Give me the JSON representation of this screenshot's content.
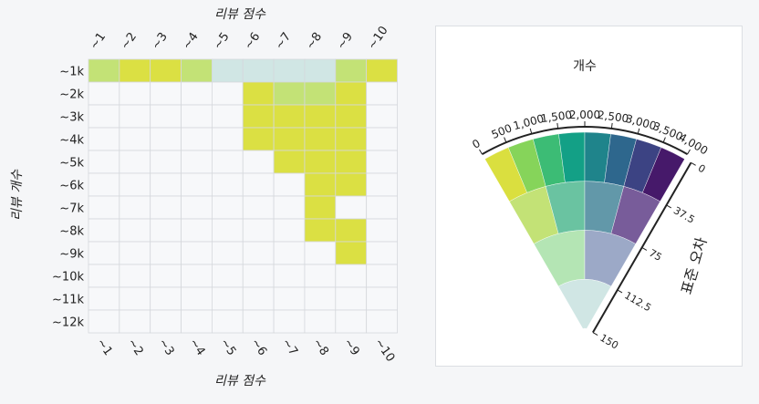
{
  "heatmap": {
    "title_top": "리뷰 점수",
    "xlabel": "리뷰 점수",
    "ylabel": "리뷰 개수"
  },
  "radial": {
    "angle_label": "개수",
    "radius_label": "표준 오차"
  },
  "colors": {
    "cell_empty": "#f7f8fa",
    "grid": "#d5d8dc"
  },
  "chart_data": [
    {
      "type": "heatmap",
      "title": "",
      "xlabel": "리뷰 점수",
      "ylabel": "리뷰 개수",
      "x_categories": [
        "~1",
        "~2",
        "~3",
        "~4",
        "~5",
        "~6",
        "~7",
        "~8",
        "~9",
        "~10"
      ],
      "y_categories": [
        "~1k",
        "~2k",
        "~3k",
        "~4k",
        "~5k",
        "~6k",
        "~7k",
        "~8k",
        "~9k",
        "~10k",
        "~11k",
        "~12k"
      ],
      "x_axis_positions": [
        "top",
        "bottom"
      ],
      "cells": [
        {
          "x": "~1",
          "y": "~1k",
          "color": "#c3e276"
        },
        {
          "x": "~2",
          "y": "~1k",
          "color": "#dbe043"
        },
        {
          "x": "~3",
          "y": "~1k",
          "color": "#dbe043"
        },
        {
          "x": "~4",
          "y": "~1k",
          "color": "#c3e276"
        },
        {
          "x": "~5",
          "y": "~1k",
          "color": "#d0e6e4"
        },
        {
          "x": "~6",
          "y": "~1k",
          "color": "#d0e6e4"
        },
        {
          "x": "~7",
          "y": "~1k",
          "color": "#d0e6e4"
        },
        {
          "x": "~8",
          "y": "~1k",
          "color": "#d0e6e4"
        },
        {
          "x": "~9",
          "y": "~1k",
          "color": "#c3e276"
        },
        {
          "x": "~10",
          "y": "~1k",
          "color": "#dbe043"
        },
        {
          "x": "~6",
          "y": "~2k",
          "color": "#dbe043"
        },
        {
          "x": "~7",
          "y": "~2k",
          "color": "#c3e276"
        },
        {
          "x": "~8",
          "y": "~2k",
          "color": "#c3e276"
        },
        {
          "x": "~9",
          "y": "~2k",
          "color": "#dbe043"
        },
        {
          "x": "~6",
          "y": "~3k",
          "color": "#dbe043"
        },
        {
          "x": "~7",
          "y": "~3k",
          "color": "#dbe043"
        },
        {
          "x": "~8",
          "y": "~3k",
          "color": "#dbe043"
        },
        {
          "x": "~9",
          "y": "~3k",
          "color": "#dbe043"
        },
        {
          "x": "~6",
          "y": "~4k",
          "color": "#dbe043"
        },
        {
          "x": "~7",
          "y": "~4k",
          "color": "#dbe043"
        },
        {
          "x": "~8",
          "y": "~4k",
          "color": "#dbe043"
        },
        {
          "x": "~9",
          "y": "~4k",
          "color": "#dbe043"
        },
        {
          "x": "~7",
          "y": "~5k",
          "color": "#dbe043"
        },
        {
          "x": "~8",
          "y": "~5k",
          "color": "#dbe043"
        },
        {
          "x": "~9",
          "y": "~5k",
          "color": "#dbe043"
        },
        {
          "x": "~8",
          "y": "~6k",
          "color": "#dbe043"
        },
        {
          "x": "~9",
          "y": "~6k",
          "color": "#dbe043"
        },
        {
          "x": "~8",
          "y": "~7k",
          "color": "#dbe043"
        },
        {
          "x": "~8",
          "y": "~8k",
          "color": "#dbe043"
        },
        {
          "x": "~9",
          "y": "~8k",
          "color": "#dbe043"
        },
        {
          "x": "~9",
          "y": "~9k",
          "color": "#dbe043"
        }
      ]
    },
    {
      "type": "radial_bar",
      "title": "",
      "angle_label": "개수",
      "radius_label": "표준 오차",
      "angle_axis": {
        "min": 0,
        "max": 4000,
        "ticks": [
          0,
          500,
          1000,
          1500,
          2000,
          2500,
          3000,
          3500,
          4000
        ],
        "tick_labels": [
          "0",
          "500",
          "1,000",
          "1,500",
          "2,000",
          "2,500",
          "3,000",
          "3,500",
          "4,000"
        ]
      },
      "radius_axis": {
        "min": 0,
        "max": 150,
        "ticks": [
          0,
          37.5,
          75,
          112.5,
          150
        ],
        "tick_labels": [
          "0",
          "37.5",
          "75",
          "112.5",
          "150"
        ]
      },
      "radial_bands": [
        {
          "band_index": 0,
          "segments": [
            {
              "from": 0,
              "to": 500,
              "color": "#dadf3f"
            },
            {
              "from": 500,
              "to": 1000,
              "color": "#86d45a"
            },
            {
              "from": 1000,
              "to": 1500,
              "color": "#3cbc75"
            },
            {
              "from": 1500,
              "to": 2000,
              "color": "#13a086"
            },
            {
              "from": 2000,
              "to": 2500,
              "color": "#1f848b"
            },
            {
              "from": 2500,
              "to": 3000,
              "color": "#2e678d"
            },
            {
              "from": 3000,
              "to": 3500,
              "color": "#3c4383"
            },
            {
              "from": 3500,
              "to": 4000,
              "color": "#46196a"
            }
          ]
        },
        {
          "band_index": 1,
          "segments": [
            {
              "from": 0,
              "to": 1000,
              "color": "#c3e276"
            },
            {
              "from": 1000,
              "to": 2000,
              "color": "#6ac3a1"
            },
            {
              "from": 2000,
              "to": 3000,
              "color": "#6298a9"
            },
            {
              "from": 3000,
              "to": 4000,
              "color": "#785c9a"
            }
          ]
        },
        {
          "band_index": 2,
          "segments": [
            {
              "from": 0,
              "to": 2000,
              "color": "#b4e5b4"
            },
            {
              "from": 2000,
              "to": 4000,
              "color": "#9ca9c7"
            }
          ]
        },
        {
          "band_index": 3,
          "segments": [
            {
              "from": 0,
              "to": 4000,
              "color": "#d0e6e4"
            }
          ]
        }
      ]
    }
  ]
}
